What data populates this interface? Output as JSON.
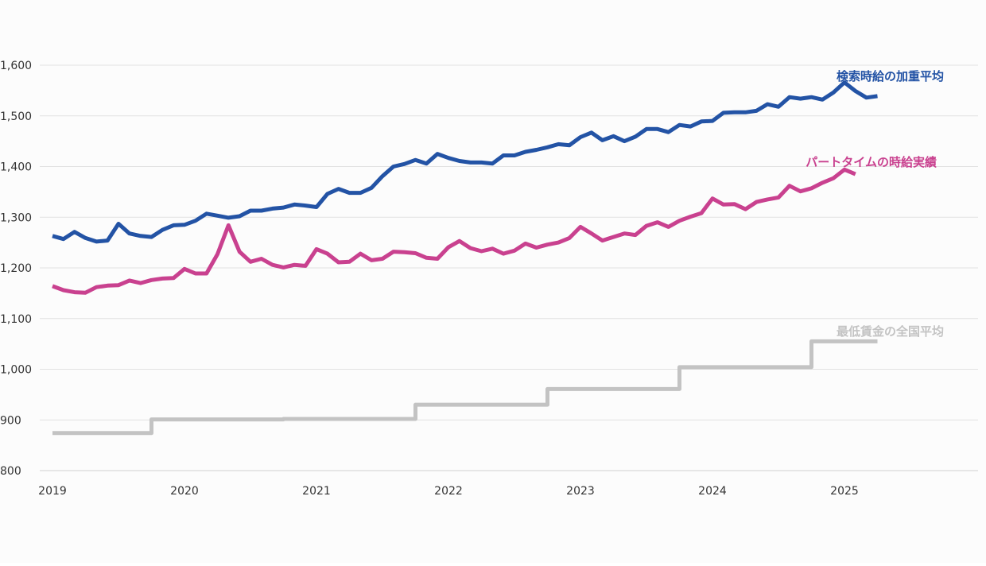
{
  "chart_data": {
    "type": "line",
    "title": "",
    "xlabel": "",
    "ylabel": "",
    "ylim": [
      800,
      1600
    ],
    "yticks": [
      800,
      900,
      1000,
      1100,
      1200,
      1300,
      1400,
      1500,
      1600
    ],
    "ytick_labels": [
      "800",
      "900",
      "1,000",
      "1,100",
      "1,200",
      "1,300",
      "1,400",
      "1,500",
      "1,600"
    ],
    "xlim": [
      2019.0,
      2025.9
    ],
    "xticks": [
      2019,
      2020,
      2021,
      2022,
      2023,
      2024,
      2025
    ],
    "xtick_labels": [
      "2019",
      "2020",
      "2021",
      "2022",
      "2023",
      "2024",
      "2025"
    ],
    "grid": true,
    "legend": "inline labels at line ends",
    "series": [
      {
        "name": "検索時給の加重平均",
        "color": "#2353a5",
        "style": "line",
        "start": 2019.0,
        "step": 0.08333,
        "values": [
          1263,
          1257,
          1271,
          1259,
          1252,
          1254,
          1287,
          1268,
          1263,
          1261,
          1275,
          1284,
          1285,
          1293,
          1307,
          1303,
          1299,
          1302,
          1313,
          1313,
          1317,
          1319,
          1325,
          1323,
          1320,
          1346,
          1356,
          1348,
          1348,
          1358,
          1381,
          1400,
          1405,
          1413,
          1406,
          1425,
          1417,
          1411,
          1408,
          1408,
          1406,
          1422,
          1422,
          1429,
          1433,
          1438,
          1444,
          1442,
          1458,
          1467,
          1452,
          1460,
          1450,
          1459,
          1474,
          1474,
          1468,
          1482,
          1479,
          1489,
          1490,
          1506,
          1507,
          1507,
          1510,
          1523,
          1518,
          1537,
          1534,
          1537,
          1532,
          1546,
          1566,
          1549,
          1536,
          1539
        ]
      },
      {
        "name": "パートタイムの時給実績",
        "color": "#c9418f",
        "style": "line",
        "start": 2019.0,
        "step": 0.08333,
        "values": [
          1164,
          1156,
          1152,
          1151,
          1162,
          1165,
          1166,
          1175,
          1170,
          1176,
          1179,
          1180,
          1198,
          1189,
          1189,
          1227,
          1284,
          1232,
          1212,
          1218,
          1206,
          1201,
          1206,
          1204,
          1237,
          1228,
          1211,
          1212,
          1228,
          1215,
          1218,
          1232,
          1231,
          1229,
          1220,
          1218,
          1241,
          1253,
          1239,
          1233,
          1238,
          1228,
          1234,
          1248,
          1240,
          1246,
          1250,
          1259,
          1281,
          1268,
          1254,
          1261,
          1268,
          1265,
          1283,
          1290,
          1281,
          1293,
          1301,
          1308,
          1337,
          1325,
          1326,
          1316,
          1330,
          1335,
          1339,
          1362,
          1351,
          1357,
          1368,
          1377,
          1394,
          1385
        ]
      },
      {
        "name": "最低賃金の全国平均",
        "color": "#c3c3c3",
        "style": "step",
        "points": [
          [
            2019.0,
            874
          ],
          [
            2019.75,
            901
          ],
          [
            2020.75,
            902
          ],
          [
            2021.75,
            930
          ],
          [
            2022.75,
            961
          ],
          [
            2023.75,
            1004
          ],
          [
            2024.75,
            1055
          ],
          [
            2025.25,
            1055
          ]
        ]
      }
    ]
  }
}
